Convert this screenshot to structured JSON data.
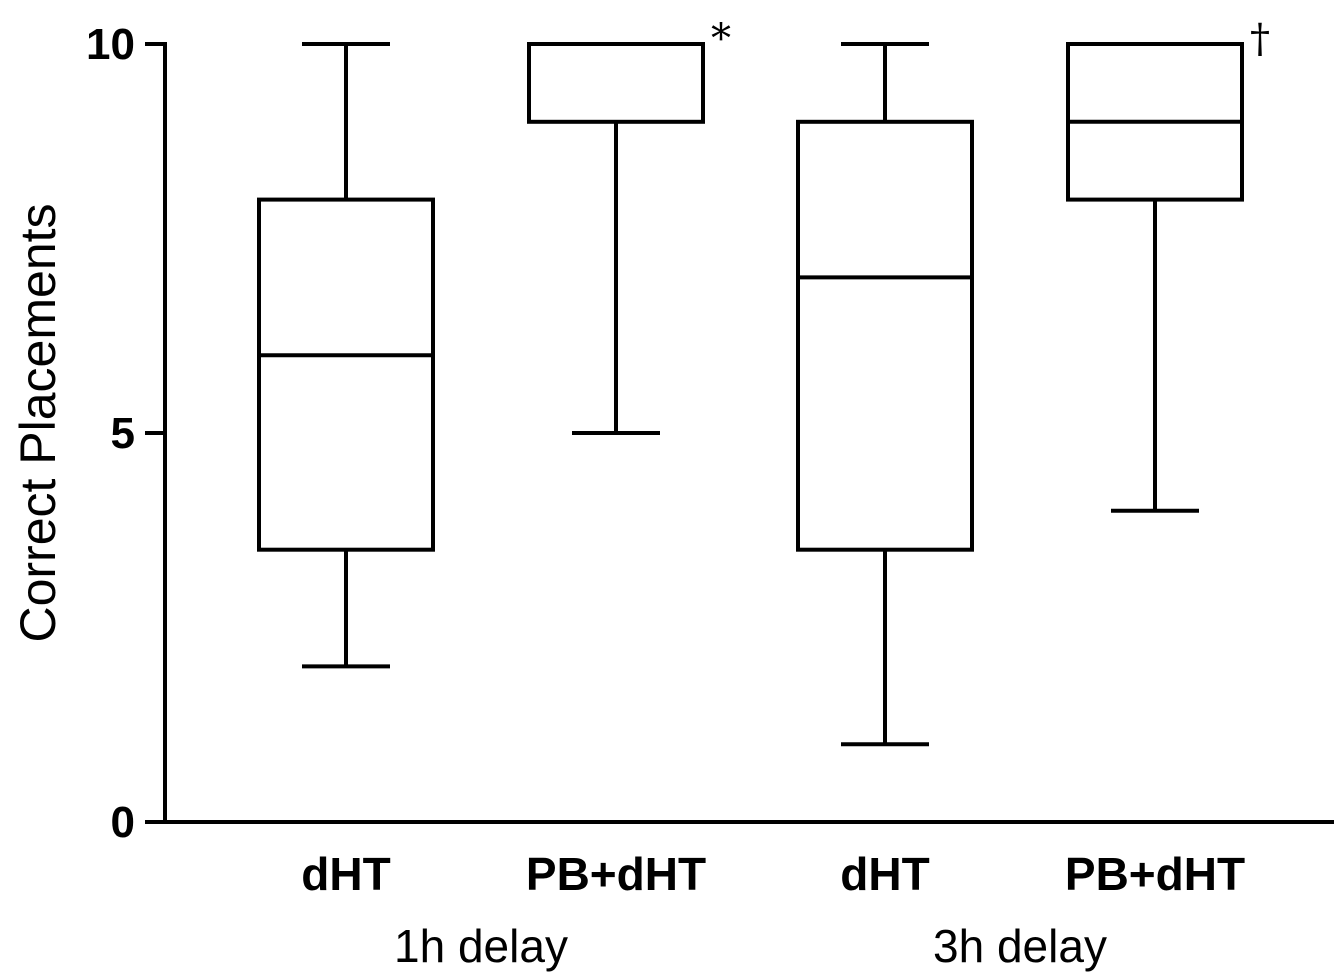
{
  "chart_data": {
    "type": "box",
    "ylabel": "Correct Placements",
    "xlabel": "",
    "ylim": [
      0,
      10
    ],
    "yticks": [
      0,
      5,
      10
    ],
    "grid": false,
    "categories": [
      "dHT",
      "PB+dHT",
      "dHT",
      "PB+dHT"
    ],
    "groups": [
      {
        "label": "1h delay",
        "categories": [
          0,
          1
        ]
      },
      {
        "label": "3h delay",
        "categories": [
          2,
          3
        ]
      }
    ],
    "boxes": [
      {
        "category": "dHT",
        "group": "1h delay",
        "min": 2,
        "q1": 3.5,
        "median": 6,
        "q3": 8,
        "max": 10,
        "annotation": ""
      },
      {
        "category": "PB+dHT",
        "group": "1h delay",
        "min": 5,
        "q1": 9,
        "median": 10,
        "q3": 10,
        "max": 10,
        "annotation": "*"
      },
      {
        "category": "dHT",
        "group": "3h delay",
        "min": 1,
        "q1": 3.5,
        "median": 7,
        "q3": 9,
        "max": 10,
        "annotation": ""
      },
      {
        "category": "PB+dHT",
        "group": "3h delay",
        "min": 4,
        "q1": 8,
        "median": 9,
        "q3": 10,
        "max": 10,
        "annotation": "†"
      }
    ]
  }
}
